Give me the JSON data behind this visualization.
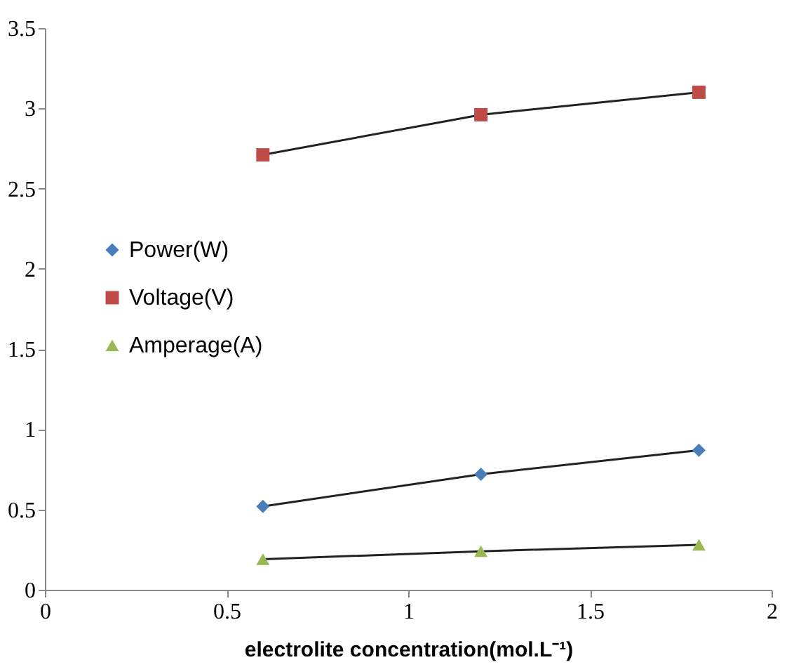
{
  "chart_data": {
    "type": "line",
    "xlabel": "electrolite concentration(mol.L⁻¹)",
    "x": [
      0.6,
      1.2,
      1.8
    ],
    "series": [
      {
        "name": "Power(W)",
        "color": "#4a7ebb",
        "marker": "diamond",
        "values": [
          0.52,
          0.72,
          0.87
        ]
      },
      {
        "name": "Voltage(V)",
        "color": "#be4b48",
        "marker": "square",
        "values": [
          2.71,
          2.96,
          3.1
        ]
      },
      {
        "name": "Amperage(A)",
        "color": "#98b954",
        "marker": "triangle",
        "values": [
          0.19,
          0.24,
          0.28
        ]
      }
    ],
    "xlim": [
      0,
      2
    ],
    "xticks": [
      0,
      0.5,
      1,
      1.5,
      2
    ],
    "ylim": [
      0,
      3.5
    ],
    "yticks": [
      0,
      0.5,
      1,
      1.5,
      2,
      2.5,
      3,
      3.5
    ],
    "grid": false,
    "legend": "left",
    "line_style": "solid"
  }
}
